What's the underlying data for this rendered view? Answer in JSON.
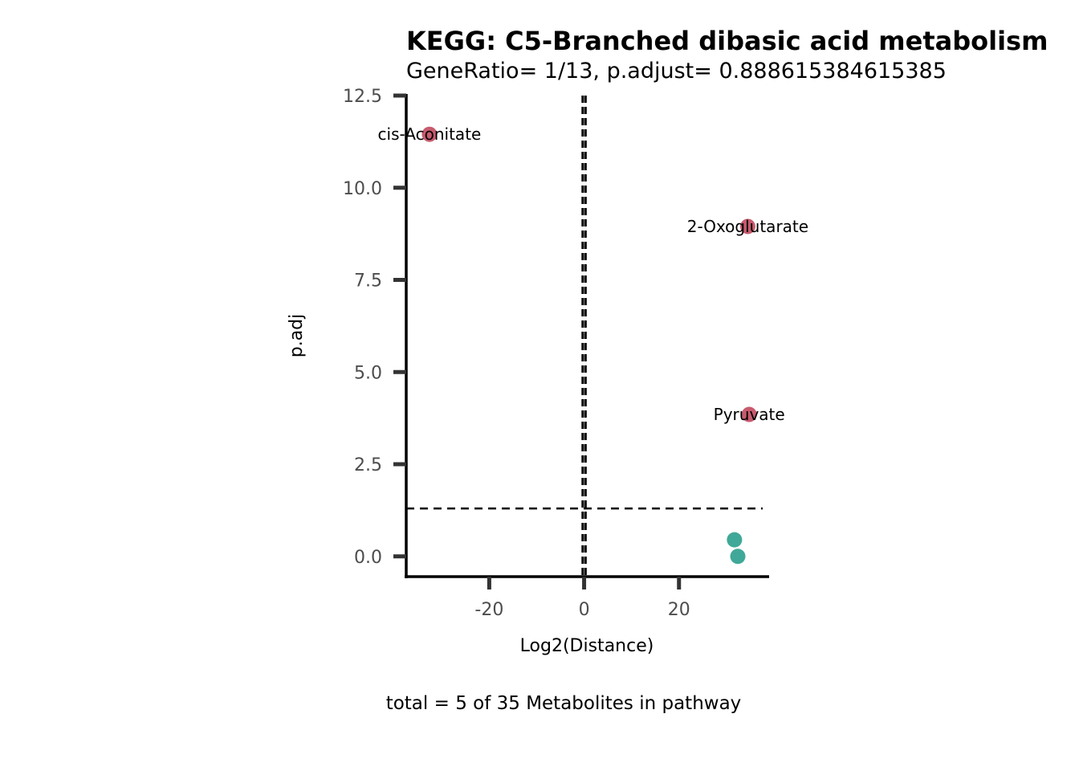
{
  "chart_data": {
    "type": "scatter",
    "title": "KEGG: C5-Branched dibasic acid metabolism",
    "subtitle": "GeneRatio= 1/13, p.adjust= 0.888615384615385",
    "xlabel": "Log2(Distance)",
    "ylabel": "p.adj",
    "caption": "total = 5 of 35 Metabolites in pathway",
    "xlim": [
      -37.5,
      39
    ],
    "ylim": [
      -0.55,
      12.5
    ],
    "x_ticks": [
      -20,
      0,
      20
    ],
    "x_tick_labels": [
      "-20",
      "0",
      "20"
    ],
    "y_ticks": [
      0,
      2.5,
      5,
      7.5,
      10,
      12.5
    ],
    "y_tick_labels": [
      "0.0",
      "2.5",
      "5.0",
      "7.5",
      "10.0",
      "12.5"
    ],
    "vlines": [
      -0.3,
      0.3
    ],
    "hline": 1.3,
    "grid": false,
    "colors": {
      "significant": "#c75b6e",
      "not_significant": "#40a898",
      "axis": "#000000",
      "tick": "#333333"
    },
    "points": [
      {
        "x": -32.6,
        "y": 11.45,
        "label": "cis-Aconitate",
        "significant": true
      },
      {
        "x": 34.5,
        "y": 8.95,
        "label": "2-Oxoglutarate",
        "significant": true
      },
      {
        "x": 34.8,
        "y": 3.85,
        "label": "Pyruvate",
        "significant": true
      },
      {
        "x": 31.7,
        "y": 0.45,
        "label": "",
        "significant": false
      },
      {
        "x": 32.4,
        "y": 0.0,
        "label": "",
        "significant": false
      }
    ]
  }
}
